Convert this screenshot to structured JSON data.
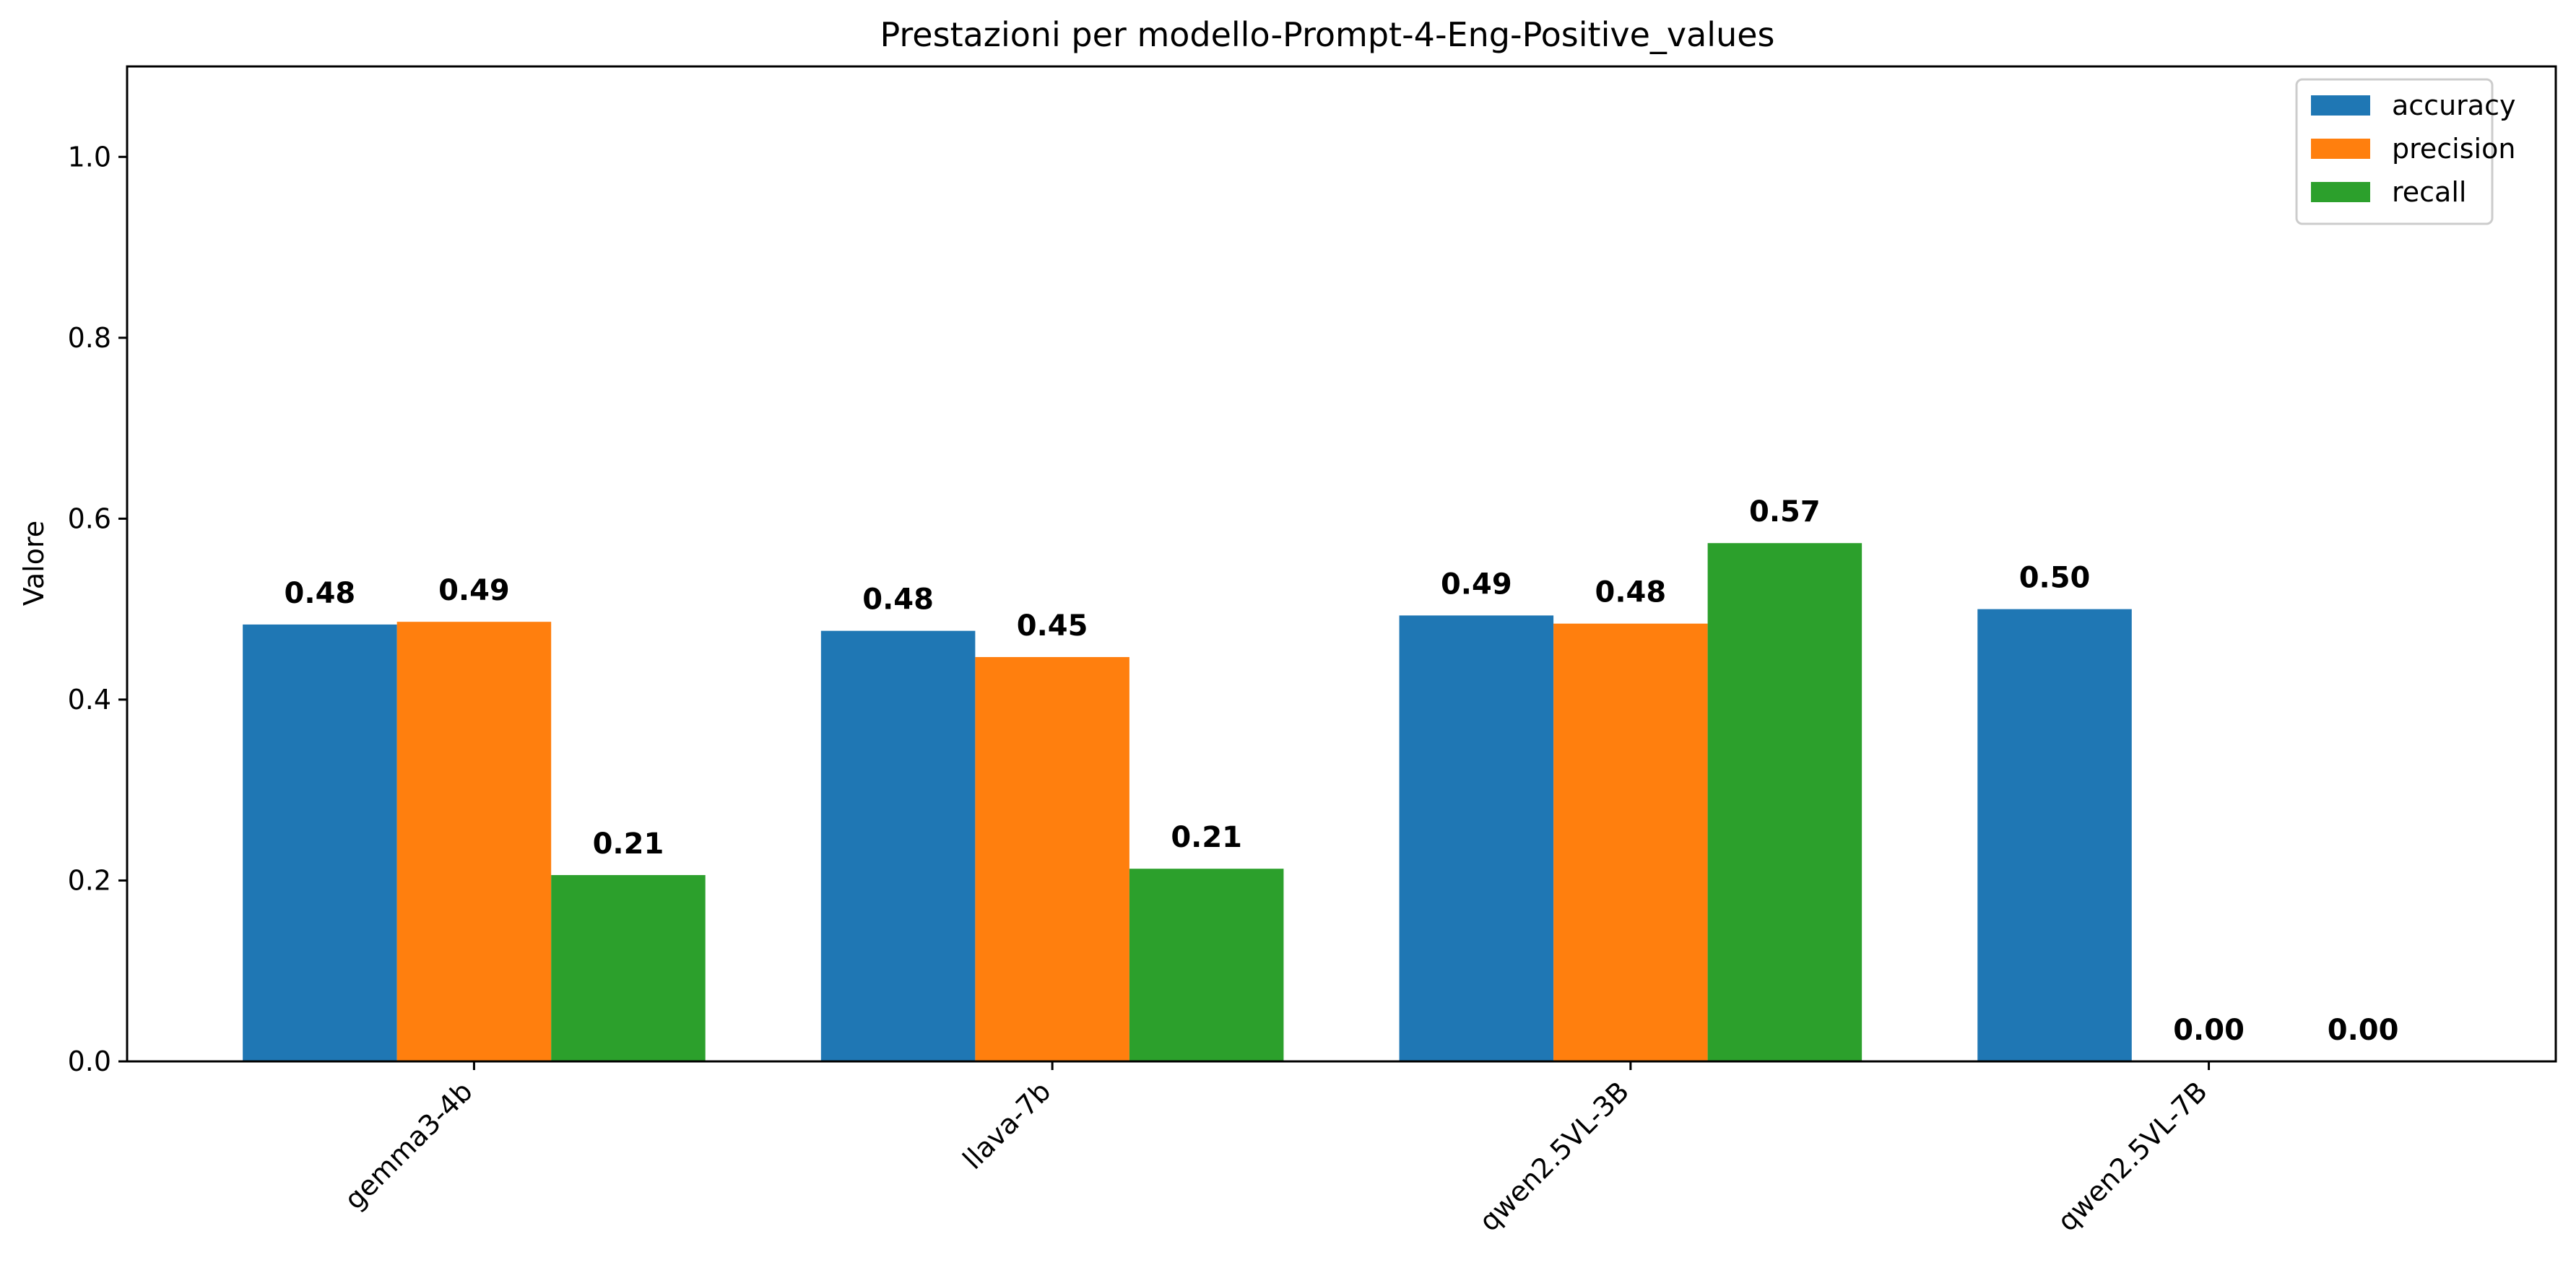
{
  "chart_data": {
    "type": "bar",
    "title": "Prestazioni per modello-Prompt-4-Eng-Positive_values",
    "xlabel": "",
    "ylabel": "Valore",
    "ylim": [
      0,
      1.1
    ],
    "yticks": [
      "0.0",
      "0.2",
      "0.4",
      "0.6",
      "0.8",
      "1.0"
    ],
    "categories": [
      "gemma3-4b",
      "llava-7b",
      "qwen2.5VL-3B",
      "qwen2.5VL-7B"
    ],
    "series": [
      {
        "name": "accuracy",
        "color": "#1f77b4",
        "values": [
          0.483,
          0.476,
          0.493,
          0.5
        ],
        "labels": [
          "0.48",
          "0.48",
          "0.49",
          "0.50"
        ]
      },
      {
        "name": "precision",
        "color": "#ff7f0e",
        "values": [
          0.486,
          0.447,
          0.484,
          0.0
        ],
        "labels": [
          "0.49",
          "0.45",
          "0.48",
          "0.00"
        ]
      },
      {
        "name": "recall",
        "color": "#2ca02c",
        "values": [
          0.206,
          0.213,
          0.573,
          0.0
        ],
        "labels": [
          "0.21",
          "0.21",
          "0.57",
          "0.00"
        ]
      }
    ],
    "grid": false,
    "legend_position": "top-right"
  }
}
